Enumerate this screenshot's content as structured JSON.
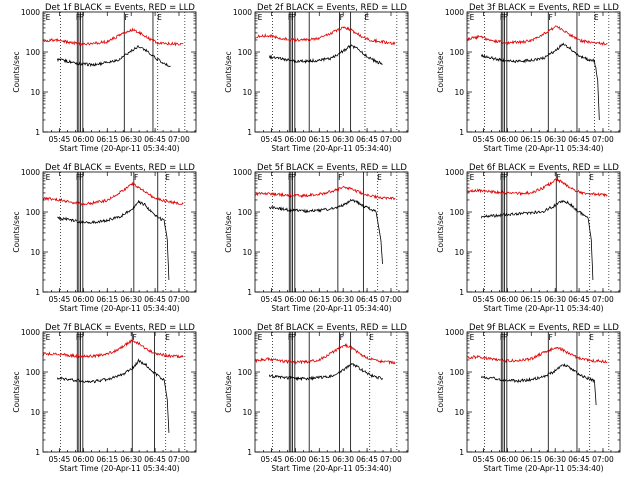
{
  "figure": {
    "time_axis_label": "Start Time (20-Apr-11 05:34:40)",
    "y_axis_label": "Counts/sec",
    "x_tick_labels": [
      "05:45",
      "06:00",
      "06:15",
      "06:30",
      "06:45",
      "07:00"
    ],
    "y_tick_labels": [
      "1",
      "10",
      "100",
      "1000"
    ],
    "marker_labels": [
      "E",
      "F",
      "F",
      "F",
      "E"
    ]
  },
  "colors": {
    "events": "#000000",
    "lld": "#e00000"
  },
  "chart_data": [
    {
      "type": "line",
      "title": "Det 1f BLACK = Events, RED = LLD",
      "xlabel": "Start Time (20-Apr-11 05:34:40)",
      "ylabel": "Counts/sec",
      "x_unit": "minutes after 05:34:40",
      "xlim": [
        0,
        96
      ],
      "ylim": [
        1,
        1000
      ],
      "yscale": "log",
      "x": [
        0,
        8,
        16,
        24,
        32,
        40,
        48,
        56,
        60,
        64,
        68,
        72,
        80,
        84,
        88
      ],
      "series": [
        {
          "name": "Events",
          "color": "#000000",
          "x": [
            9,
            16,
            24,
            32,
            40,
            48,
            56,
            60,
            64,
            68,
            72,
            76,
            80
          ],
          "values": [
            65,
            58,
            50,
            48,
            55,
            65,
            110,
            140,
            115,
            85,
            65,
            50,
            45
          ]
        },
        {
          "name": "LLD",
          "color": "#e00000",
          "x": [
            0,
            8,
            16,
            24,
            32,
            40,
            48,
            56,
            60,
            64,
            68,
            72,
            80,
            84,
            88
          ],
          "values": [
            190,
            200,
            175,
            160,
            165,
            180,
            260,
            360,
            310,
            250,
            200,
            170,
            160,
            160,
            160
          ]
        }
      ],
      "solid_markers": [
        21.5,
        22.5,
        23.5,
        25,
        51,
        69
      ],
      "dotted_markers": [
        11,
        72,
        89
      ]
    },
    {
      "type": "line",
      "title": "Det 2f BLACK = Events, RED = LLD",
      "xlabel": "Start Time (20-Apr-11 05:34:40)",
      "ylabel": "Counts/sec",
      "x_unit": "minutes after 05:34:40",
      "xlim": [
        0,
        96
      ],
      "ylim": [
        1,
        1000
      ],
      "yscale": "log",
      "x": [
        0,
        8,
        16,
        24,
        32,
        40,
        48,
        56,
        60,
        64,
        68,
        72,
        80,
        84,
        88
      ],
      "series": [
        {
          "name": "Events",
          "color": "#000000",
          "x": [
            9,
            16,
            24,
            32,
            40,
            48,
            56,
            60,
            64,
            68,
            72,
            76,
            80
          ],
          "values": [
            75,
            68,
            60,
            58,
            62,
            70,
            110,
            145,
            125,
            90,
            70,
            58,
            50
          ]
        },
        {
          "name": "LLD",
          "color": "#e00000",
          "x": [
            0,
            8,
            16,
            24,
            32,
            40,
            48,
            56,
            60,
            64,
            68,
            72,
            80,
            84,
            88
          ],
          "values": [
            240,
            260,
            220,
            200,
            205,
            220,
            300,
            420,
            360,
            290,
            230,
            200,
            180,
            170,
            165
          ]
        }
      ],
      "solid_markers": [
        21.5,
        22.5,
        23.5,
        25,
        34,
        53,
        60
      ],
      "dotted_markers": [
        11,
        69,
        89
      ]
    },
    {
      "type": "line",
      "title": "Det 3f BLACK = Events, RED = LLD",
      "xlabel": "Start Time (20-Apr-11 05:34:40)",
      "ylabel": "Counts/sec",
      "x_unit": "minutes after 05:34:40",
      "xlim": [
        0,
        96
      ],
      "ylim": [
        1,
        1000
      ],
      "yscale": "log",
      "x": [
        0,
        8,
        16,
        24,
        32,
        40,
        48,
        56,
        60,
        64,
        68,
        72,
        80,
        84,
        88
      ],
      "series": [
        {
          "name": "Events",
          "color": "#000000",
          "x": [
            9,
            16,
            24,
            32,
            40,
            48,
            56,
            60,
            64,
            68,
            72,
            76,
            80,
            82,
            83
          ],
          "values": [
            80,
            70,
            60,
            58,
            62,
            70,
            110,
            160,
            130,
            95,
            75,
            65,
            60,
            20,
            2
          ]
        },
        {
          "name": "LLD",
          "color": "#e00000",
          "x": [
            0,
            8,
            16,
            24,
            32,
            40,
            48,
            56,
            60,
            64,
            68,
            72,
            80,
            84,
            88
          ],
          "values": [
            210,
            240,
            190,
            170,
            175,
            190,
            280,
            430,
            360,
            280,
            220,
            190,
            170,
            165,
            160
          ]
        }
      ],
      "solid_markers": [
        21.5,
        22.5,
        23.5,
        25,
        51,
        69
      ],
      "dotted_markers": [
        11,
        80,
        89
      ]
    },
    {
      "type": "line",
      "title": "Det 4f BLACK = Events, RED = LLD",
      "xlabel": "Start Time (20-Apr-11 05:34:40)",
      "ylabel": "Counts/sec",
      "x_unit": "minutes after 05:34:40",
      "xlim": [
        0,
        96
      ],
      "ylim": [
        1,
        1000
      ],
      "yscale": "log",
      "x": [
        0,
        8,
        16,
        24,
        32,
        40,
        48,
        56,
        60,
        64,
        68,
        72,
        80,
        84,
        88
      ],
      "series": [
        {
          "name": "Events",
          "color": "#000000",
          "x": [
            9,
            16,
            24,
            32,
            40,
            48,
            56,
            60,
            64,
            68,
            72,
            76,
            78,
            79
          ],
          "values": [
            70,
            65,
            55,
            55,
            62,
            75,
            120,
            180,
            150,
            100,
            75,
            60,
            20,
            2
          ]
        },
        {
          "name": "LLD",
          "color": "#e00000",
          "x": [
            0,
            8,
            16,
            24,
            32,
            40,
            48,
            56,
            60,
            64,
            68,
            72,
            80,
            84,
            88
          ],
          "values": [
            220,
            210,
            180,
            160,
            170,
            195,
            300,
            500,
            420,
            320,
            250,
            210,
            180,
            170,
            160
          ]
        }
      ],
      "solid_markers": [
        21.5,
        22.5,
        23.5,
        25,
        57,
        72
      ],
      "dotted_markers": [
        11,
        77,
        89
      ]
    },
    {
      "type": "line",
      "title": "Det 5f BLACK = Events, RED = LLD",
      "xlabel": "Start Time (20-Apr-11 05:34:40)",
      "ylabel": "Counts/sec",
      "x_unit": "minutes after 05:34:40",
      "xlim": [
        0,
        96
      ],
      "ylim": [
        1,
        1000
      ],
      "yscale": "log",
      "x": [
        0,
        8,
        16,
        24,
        32,
        40,
        48,
        56,
        60,
        64,
        68,
        72,
        80,
        84,
        88
      ],
      "series": [
        {
          "name": "Events",
          "color": "#000000",
          "x": [
            9,
            16,
            24,
            32,
            40,
            48,
            56,
            60,
            64,
            68,
            72,
            76,
            79,
            80
          ],
          "values": [
            130,
            120,
            110,
            105,
            110,
            120,
            150,
            200,
            175,
            140,
            120,
            100,
            20,
            5
          ]
        },
        {
          "name": "LLD",
          "color": "#e00000",
          "x": [
            0,
            8,
            16,
            24,
            32,
            40,
            48,
            56,
            60,
            64,
            68,
            72,
            80,
            84,
            88
          ],
          "values": [
            280,
            290,
            270,
            255,
            260,
            275,
            330,
            420,
            390,
            330,
            280,
            250,
            230,
            225,
            220
          ]
        }
      ],
      "solid_markers": [
        21.5,
        22.5,
        23.5,
        25,
        52,
        68
      ],
      "dotted_markers": [
        11,
        77,
        89
      ]
    },
    {
      "type": "line",
      "title": "Det 6f BLACK = Events, RED = LLD",
      "xlabel": "Start Time (20-Apr-11 05:34:40)",
      "ylabel": "Counts/sec",
      "x_unit": "minutes after 05:34:40",
      "xlim": [
        0,
        96
      ],
      "ylim": [
        1,
        1000
      ],
      "yscale": "log",
      "x": [
        0,
        8,
        16,
        24,
        32,
        40,
        48,
        56,
        60,
        64,
        68,
        72,
        80,
        84,
        88
      ],
      "series": [
        {
          "name": "Events",
          "color": "#000000",
          "x": [
            9,
            16,
            24,
            32,
            40,
            48,
            56,
            60,
            64,
            68,
            72,
            76,
            78,
            79
          ],
          "values": [
            75,
            80,
            85,
            90,
            95,
            105,
            150,
            190,
            170,
            120,
            90,
            70,
            20,
            2
          ]
        },
        {
          "name": "LLD",
          "color": "#e00000",
          "x": [
            0,
            8,
            16,
            24,
            32,
            40,
            48,
            56,
            60,
            64,
            68,
            72,
            80,
            84,
            88
          ],
          "values": [
            330,
            340,
            320,
            300,
            290,
            300,
            400,
            640,
            560,
            420,
            340,
            300,
            280,
            270,
            265
          ]
        }
      ],
      "solid_markers": [
        21.5,
        22.5,
        23.5,
        25,
        56,
        69
      ],
      "dotted_markers": [
        11,
        77,
        89
      ]
    },
    {
      "type": "line",
      "title": "Det 7f BLACK = Events, RED = LLD",
      "xlabel": "Start Time (20-Apr-11 05:34:40)",
      "ylabel": "Counts/sec",
      "x_unit": "minutes after 05:34:40",
      "xlim": [
        0,
        96
      ],
      "ylim": [
        1,
        1000
      ],
      "yscale": "log",
      "x": [
        0,
        8,
        16,
        24,
        32,
        40,
        48,
        56,
        60,
        64,
        68,
        72,
        80,
        84,
        88
      ],
      "series": [
        {
          "name": "Events",
          "color": "#000000",
          "x": [
            9,
            16,
            24,
            32,
            40,
            48,
            56,
            60,
            64,
            68,
            72,
            76,
            78,
            79
          ],
          "values": [
            70,
            65,
            60,
            58,
            65,
            80,
            120,
            190,
            160,
            110,
            80,
            65,
            20,
            3
          ]
        },
        {
          "name": "LLD",
          "color": "#e00000",
          "x": [
            0,
            8,
            16,
            24,
            32,
            40,
            48,
            56,
            60,
            64,
            68,
            72,
            80,
            84,
            88
          ],
          "values": [
            280,
            290,
            260,
            240,
            250,
            280,
            380,
            620,
            520,
            400,
            320,
            280,
            250,
            245,
            240
          ]
        }
      ],
      "solid_markers": [
        21.5,
        22.5,
        23.5,
        25,
        56,
        70
      ],
      "dotted_markers": [
        11,
        77,
        89
      ]
    },
    {
      "type": "line",
      "title": "Det 8f BLACK = Events, RED = LLD",
      "xlabel": "Start Time (20-Apr-11 05:34:40)",
      "ylabel": "Counts/sec",
      "x_unit": "minutes after 05:34:40",
      "xlim": [
        0,
        96
      ],
      "ylim": [
        1,
        1000
      ],
      "yscale": "log",
      "x": [
        0,
        8,
        16,
        24,
        32,
        40,
        48,
        56,
        60,
        64,
        68,
        72,
        80,
        84,
        88
      ],
      "series": [
        {
          "name": "Events",
          "color": "#000000",
          "x": [
            9,
            16,
            24,
            32,
            40,
            48,
            56,
            60,
            64,
            68,
            72,
            76,
            80
          ],
          "values": [
            80,
            75,
            70,
            68,
            72,
            80,
            115,
            160,
            140,
            105,
            85,
            75,
            70
          ]
        },
        {
          "name": "LLD",
          "color": "#e00000",
          "x": [
            0,
            8,
            16,
            24,
            32,
            40,
            48,
            56,
            60,
            64,
            68,
            72,
            80,
            84,
            88
          ],
          "values": [
            190,
            210,
            190,
            175,
            180,
            200,
            300,
            480,
            410,
            320,
            250,
            210,
            180,
            175,
            170
          ]
        }
      ],
      "solid_markers": [
        21.5,
        22.5,
        23.5,
        25,
        34,
        53,
        60
      ],
      "dotted_markers": [
        11,
        72,
        89
      ]
    },
    {
      "type": "line",
      "title": "Det 9f BLACK = Events, RED = LLD",
      "xlabel": "Start Time (20-Apr-11 05:34:40)",
      "ylabel": "Counts/sec",
      "x_unit": "minutes after 05:34:40",
      "xlim": [
        0,
        96
      ],
      "ylim": [
        1,
        1000
      ],
      "yscale": "log",
      "x": [
        0,
        8,
        16,
        24,
        32,
        40,
        48,
        56,
        60,
        64,
        68,
        72,
        80,
        84,
        88
      ],
      "series": [
        {
          "name": "Events",
          "color": "#000000",
          "x": [
            9,
            16,
            24,
            32,
            40,
            48,
            56,
            60,
            64,
            68,
            72,
            76,
            80,
            81
          ],
          "values": [
            75,
            70,
            62,
            60,
            65,
            75,
            110,
            155,
            130,
            100,
            80,
            70,
            60,
            15
          ]
        },
        {
          "name": "LLD",
          "color": "#e00000",
          "x": [
            0,
            8,
            16,
            24,
            32,
            40,
            48,
            56,
            60,
            64,
            68,
            72,
            80,
            84,
            88
          ],
          "values": [
            230,
            240,
            210,
            190,
            195,
            210,
            300,
            420,
            360,
            290,
            240,
            210,
            190,
            185,
            180
          ]
        }
      ],
      "solid_markers": [
        21.5,
        22.5,
        23.5,
        25,
        51,
        69
      ],
      "dotted_markers": [
        11,
        77,
        89
      ]
    }
  ]
}
